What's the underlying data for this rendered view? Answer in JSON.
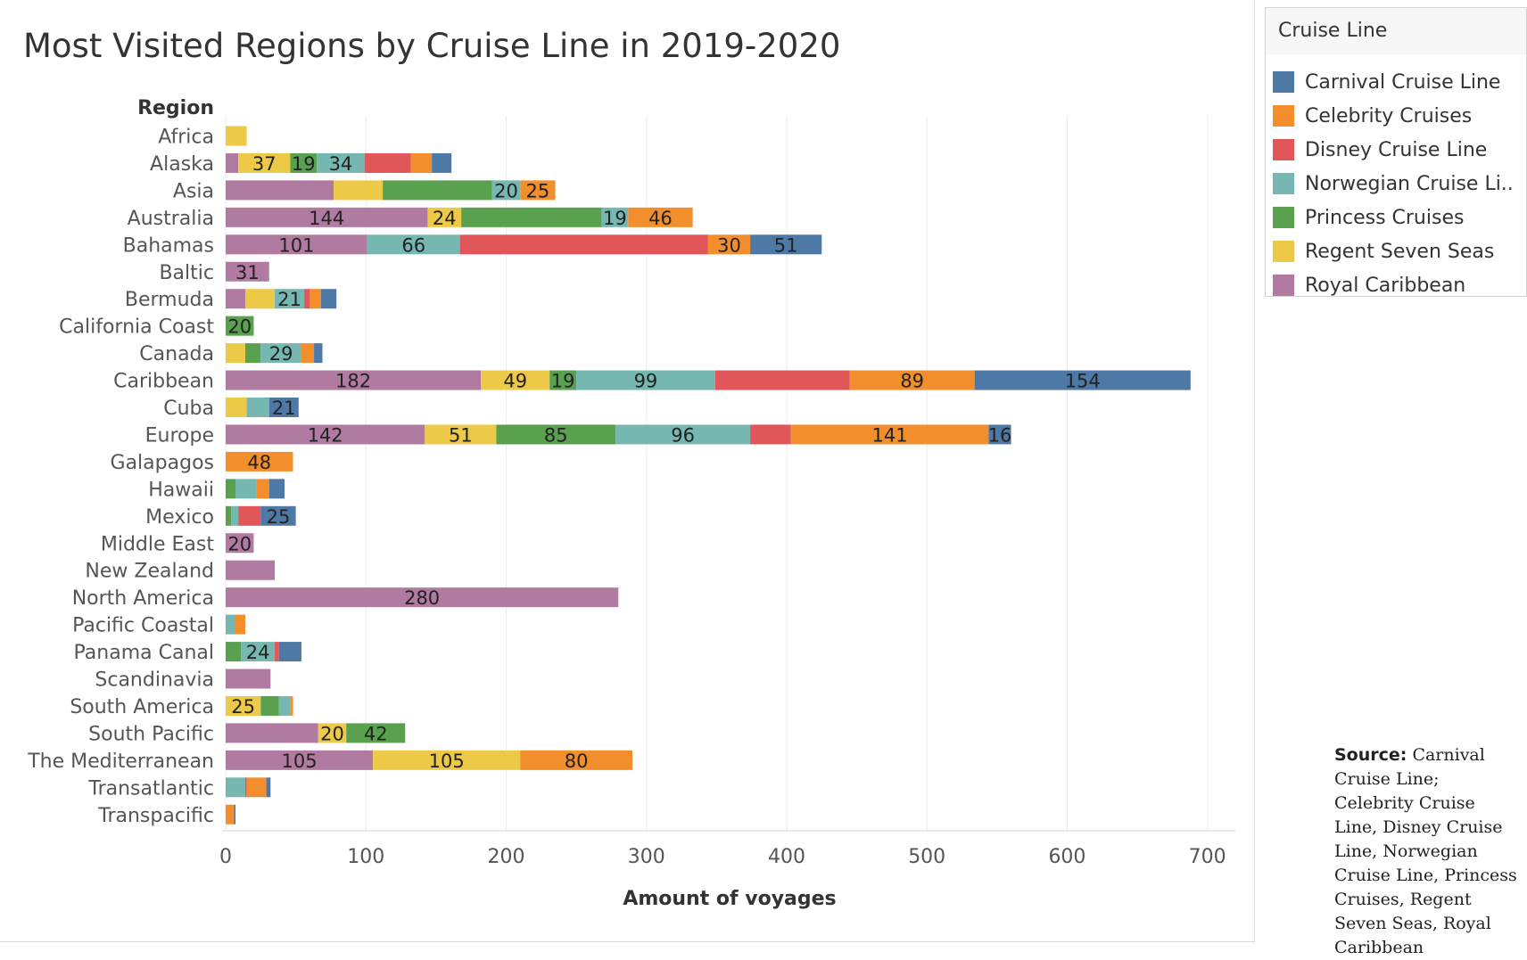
{
  "chart_data": {
    "type": "bar",
    "orientation": "horizontal",
    "stacked": true,
    "title": "Most Visited Regions by Cruise Line in 2019-2020",
    "ylabel": "Region",
    "xlabel": "Amount of voyages",
    "xlim": [
      0,
      700
    ],
    "xticks": [
      0,
      100,
      200,
      300,
      400,
      500,
      600,
      700
    ],
    "grid": true,
    "legend_title": "Cruise Line",
    "legend_position": "right",
    "categories": [
      "Africa",
      "Alaska",
      "Asia",
      "Australia",
      "Bahamas",
      "Baltic",
      "Bermuda",
      "California Coast",
      "Canada",
      "Caribbean",
      "Cuba",
      "Europe",
      "Galapagos",
      "Hawaii",
      "Mexico",
      "Middle East",
      "New Zealand",
      "North America",
      "Pacific Coastal",
      "Panama Canal",
      "Scandinavia",
      "South America",
      "South Pacific",
      "The Mediterranean",
      "Transatlantic",
      "Transpacific"
    ],
    "series": [
      {
        "name": "Royal Caribbean",
        "color": "#b07aa1",
        "values": [
          0,
          9,
          77,
          144,
          101,
          31,
          14,
          0,
          0,
          182,
          0,
          142,
          0,
          0,
          0,
          20,
          35,
          280,
          0,
          0,
          32,
          0,
          66,
          105,
          0,
          0
        ],
        "labels": [
          null,
          null,
          null,
          "144",
          "101",
          "31",
          null,
          null,
          null,
          "182",
          null,
          "142",
          null,
          null,
          null,
          "20",
          null,
          "280",
          null,
          null,
          null,
          null,
          null,
          "105",
          null,
          null
        ]
      },
      {
        "name": "Regent Seven Seas",
        "color": "#edc948",
        "values": [
          15,
          37,
          35,
          24,
          0,
          0,
          21,
          0,
          14,
          49,
          15,
          51,
          0,
          0,
          0,
          0,
          0,
          0,
          0,
          0,
          0,
          25,
          20,
          105,
          0,
          0
        ],
        "labels": [
          null,
          "37",
          null,
          "24",
          null,
          null,
          null,
          null,
          null,
          "49",
          null,
          "51",
          null,
          null,
          null,
          null,
          null,
          null,
          null,
          null,
          null,
          "25",
          "20",
          "105",
          null,
          null
        ]
      },
      {
        "name": "Princess Cruises",
        "color": "#59a14f",
        "values": [
          0,
          19,
          78,
          100,
          0,
          0,
          0,
          20,
          11,
          19,
          0,
          85,
          0,
          7,
          4,
          0,
          0,
          0,
          0,
          11,
          0,
          13,
          42,
          0,
          0,
          0
        ],
        "labels": [
          null,
          "19",
          null,
          null,
          null,
          null,
          null,
          "20",
          null,
          "19",
          null,
          "85",
          null,
          null,
          null,
          null,
          null,
          null,
          null,
          null,
          null,
          null,
          "42",
          null,
          null,
          null
        ]
      },
      {
        "name": "Norwegian Cruise Li..",
        "color": "#76b7b2",
        "values": [
          0,
          34,
          20,
          19,
          66,
          0,
          21,
          0,
          29,
          99,
          16,
          96,
          0,
          15,
          5,
          0,
          0,
          0,
          7,
          24,
          0,
          8,
          0,
          0,
          14,
          0
        ],
        "labels": [
          null,
          "34",
          "20",
          "19",
          "66",
          null,
          "21",
          null,
          "29",
          "99",
          null,
          "96",
          null,
          null,
          null,
          null,
          null,
          null,
          null,
          "24",
          null,
          null,
          null,
          null,
          null,
          null
        ]
      },
      {
        "name": "Disney Cruise Line",
        "color": "#e15759",
        "values": [
          0,
          33,
          0,
          0,
          177,
          0,
          4,
          0,
          0,
          96,
          0,
          29,
          0,
          0,
          16,
          0,
          0,
          0,
          0,
          3,
          0,
          0,
          0,
          0,
          1,
          0
        ]
      },
      {
        "name": "Celebrity Cruises",
        "color": "#f28e2b",
        "values": [
          0,
          15,
          25,
          46,
          30,
          0,
          8,
          0,
          9,
          89,
          0,
          141,
          48,
          9,
          0,
          0,
          0,
          0,
          7,
          0,
          0,
          2,
          0,
          80,
          14,
          6
        ],
        "labels": [
          null,
          null,
          "25",
          "46",
          "30",
          null,
          null,
          null,
          null,
          "89",
          null,
          "141",
          "48",
          null,
          null,
          null,
          null,
          null,
          null,
          null,
          null,
          null,
          null,
          "80",
          null,
          null
        ]
      },
      {
        "name": "Carnival Cruise Line",
        "color": "#4e79a7",
        "values": [
          0,
          14,
          0,
          0,
          51,
          0,
          11,
          0,
          6,
          154,
          21,
          16,
          0,
          11,
          25,
          0,
          0,
          0,
          0,
          16,
          0,
          0,
          0,
          0,
          3,
          1
        ],
        "labels": [
          null,
          null,
          null,
          null,
          "51",
          null,
          null,
          null,
          null,
          "154",
          "21",
          "16",
          null,
          null,
          "25",
          null,
          null,
          null,
          null,
          null,
          null,
          null,
          null,
          null,
          null,
          null
        ]
      }
    ],
    "legend_order": [
      "Carnival Cruise Line",
      "Celebrity Cruises",
      "Disney Cruise Line",
      "Norwegian Cruise Li..",
      "Princess Cruises",
      "Regent Seven Seas",
      "Royal Caribbean"
    ]
  },
  "legend": {
    "title": "Cruise Line",
    "items": [
      {
        "label": "Carnival Cruise Line",
        "color": "#4e79a7"
      },
      {
        "label": "Celebrity Cruises",
        "color": "#f28e2b"
      },
      {
        "label": "Disney Cruise Line",
        "color": "#e15759"
      },
      {
        "label": "Norwegian Cruise Li..",
        "color": "#76b7b2"
      },
      {
        "label": "Princess Cruises",
        "color": "#59a14f"
      },
      {
        "label": "Regent Seven Seas",
        "color": "#edc948"
      },
      {
        "label": "Royal Caribbean",
        "color": "#b07aa1"
      }
    ]
  },
  "source": {
    "label": "Source:",
    "text": "Carnival Cruise Line; Celebrity Cruise Line, Disney Cruise Line, Norwegian Cruise Line, Princess Cruises, Regent Seven Seas, Royal Caribbean"
  }
}
